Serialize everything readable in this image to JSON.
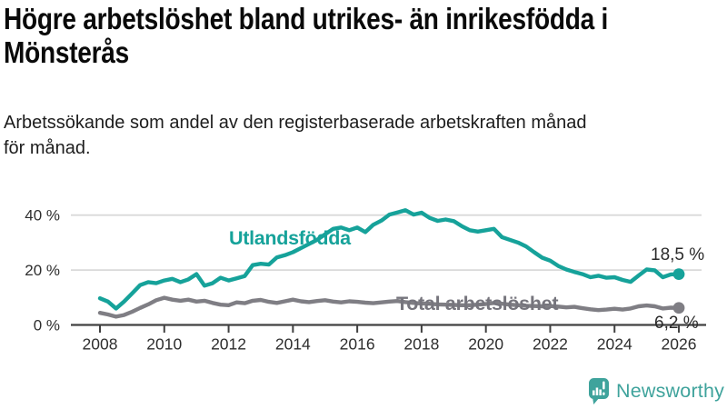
{
  "header": {
    "title_lines": [
      "Högre arbetslöshet bland utrikes- än inrikesfödda i",
      "Mönsterås"
    ],
    "subtitle_lines": [
      "Arbetssökande som andel av den registerbaserade arbetskraften månad",
      "för månad."
    ]
  },
  "footer": {
    "brand": "Newsworthy"
  },
  "colors": {
    "accent_teal": "#16a29a",
    "line_gray": "#7f7e84",
    "series_label_gray": "#76757d",
    "value_label": "#2b2b2b",
    "grid": "#d9d9d9",
    "axis": "#414141",
    "tick_text": "#2e2e2e",
    "title_text": "#0a0a0a",
    "brand_teal": "#3fa39c"
  },
  "chart_data": {
    "type": "line",
    "title": "Högre arbetslöshet bland utrikes- än inrikesfödda i Mönsterås",
    "subtitle": "Arbetssökande som andel av den registerbaserade arbetskraften månad för månad.",
    "xlabel": "",
    "ylabel": "",
    "grid": "horizontal",
    "legend_position": "inline-labels",
    "x_tick_labels": [
      "2008",
      "2010",
      "2012",
      "2014",
      "2016",
      "2018",
      "2020",
      "2022",
      "2024",
      "2026"
    ],
    "x_tick_values": [
      2008,
      2010,
      2012,
      2014,
      2016,
      2018,
      2020,
      2022,
      2024,
      2026
    ],
    "y_tick_labels": [
      "0 %",
      "20 %",
      "40 %"
    ],
    "y_tick_values": [
      0,
      20,
      40
    ],
    "ylim": [
      0,
      44
    ],
    "xlim": [
      2007.1,
      2026.9
    ],
    "x_start": 2008,
    "x_step": 0.25,
    "series": [
      {
        "name": "Utlandsfödda",
        "color": "#16a29a",
        "end_label": "18,5 %",
        "end_value": 18.5,
        "values": [
          9.7,
          8.5,
          6.0,
          8.5,
          11.5,
          14.5,
          15.6,
          15.2,
          16.2,
          16.8,
          15.6,
          16.6,
          18.5,
          14.3,
          15.2,
          17.2,
          16.2,
          17.0,
          17.8,
          21.8,
          22.3,
          22.0,
          24.6,
          25.4,
          26.5,
          28.0,
          29.5,
          31.0,
          33.0,
          35.0,
          35.5,
          34.5,
          35.5,
          33.8,
          36.5,
          38.0,
          40.2,
          41.0,
          41.8,
          40.2,
          40.9,
          39.0,
          37.9,
          38.4,
          37.8,
          36.0,
          34.5,
          34.0,
          34.5,
          35.0,
          32.0,
          31.0,
          30.0,
          28.6,
          26.5,
          24.5,
          23.4,
          21.5,
          20.2,
          19.3,
          18.5,
          17.4,
          17.9,
          17.2,
          17.4,
          16.4,
          15.7,
          18.0,
          20.2,
          19.9,
          17.4,
          18.4,
          18.5
        ]
      },
      {
        "name": "Total arbetslöshet",
        "color": "#7f7e84",
        "end_label": "6,2 %",
        "end_value": 6.2,
        "values": [
          4.4,
          3.8,
          3.0,
          3.6,
          4.8,
          6.2,
          7.5,
          9.0,
          9.9,
          9.2,
          8.8,
          9.2,
          8.5,
          8.8,
          8.0,
          7.4,
          7.2,
          8.2,
          7.9,
          8.8,
          9.1,
          8.4,
          8.0,
          8.6,
          9.2,
          8.6,
          8.3,
          8.7,
          9.0,
          8.5,
          8.2,
          8.6,
          8.4,
          8.1,
          7.9,
          8.2,
          8.5,
          8.7,
          8.3,
          8.0,
          7.8,
          7.7,
          7.5,
          7.4,
          7.3,
          7.2,
          7.2,
          7.4,
          7.6,
          8.0,
          7.7,
          7.4,
          7.2,
          7.0,
          6.9,
          6.8,
          6.9,
          6.7,
          6.4,
          6.6,
          6.1,
          5.7,
          5.4,
          5.6,
          5.9,
          5.6,
          6.0,
          6.8,
          7.1,
          6.8,
          6.0,
          6.3,
          6.2
        ]
      }
    ]
  }
}
